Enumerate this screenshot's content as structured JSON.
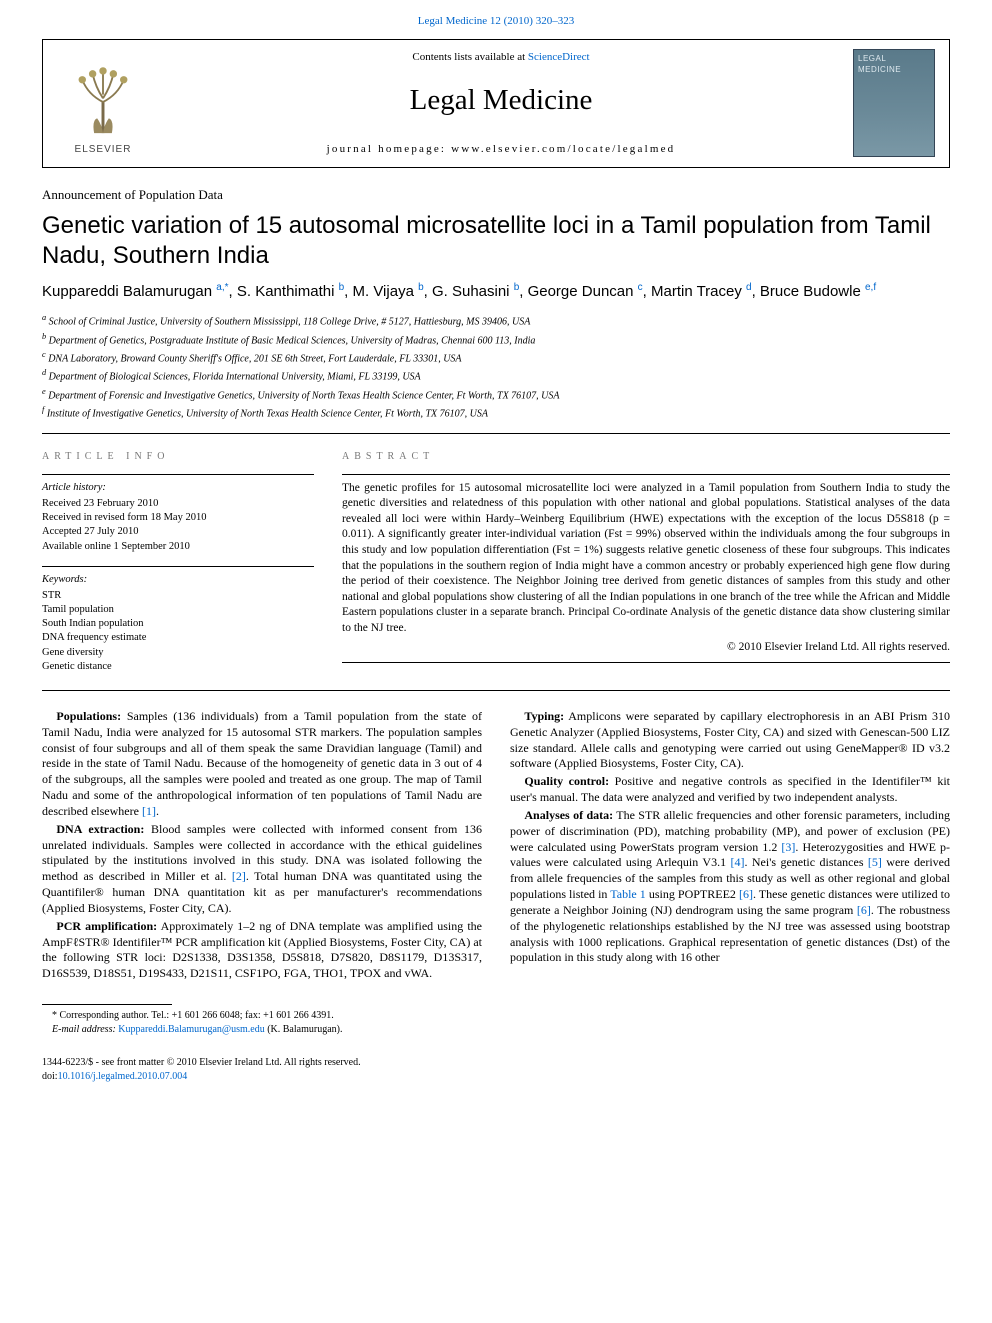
{
  "citation": "Legal Medicine 12 (2010) 320–323",
  "header": {
    "publisher_word": "ELSEVIER",
    "contents_prefix": "Contents lists available at ",
    "contents_link": "ScienceDirect",
    "journal": "Legal Medicine",
    "homepage_prefix": "journal homepage: ",
    "homepage": "www.elsevier.com/locate/legalmed",
    "cover_line1": "LEGAL",
    "cover_line2": "MEDICINE"
  },
  "article": {
    "type": "Announcement of Population Data",
    "title": "Genetic variation of 15 autosomal microsatellite loci in a Tamil population from Tamil Nadu, Southern India",
    "authors_html": "Kuppareddi Balamurugan <sup>a,*</sup>, S. Kanthimathi <sup>b</sup>, M. Vijaya <sup>b</sup>, G. Suhasini <sup>b</sup>, George Duncan <sup>c</sup>, Martin Tracey <sup>d</sup>, Bruce Budowle <sup>e,f</sup>",
    "affiliations": [
      "a School of Criminal Justice, University of Southern Mississippi, 118 College Drive, # 5127, Hattiesburg, MS 39406, USA",
      "b Department of Genetics, Postgraduate Institute of Basic Medical Sciences, University of Madras, Chennai 600 113, India",
      "c DNA Laboratory, Broward County Sheriff's Office, 201 SE 6th Street, Fort Lauderdale, FL 33301, USA",
      "d Department of Biological Sciences, Florida International University, Miami, FL 33199, USA",
      "e Department of Forensic and Investigative Genetics, University of North Texas Health Science Center, Ft Worth, TX 76107, USA",
      "f Institute of Investigative Genetics, University of North Texas Health Science Center, Ft Worth, TX 76107, USA"
    ]
  },
  "info": {
    "header": "ARTICLE INFO",
    "history_label": "Article history:",
    "history": [
      "Received 23 February 2010",
      "Received in revised form 18 May 2010",
      "Accepted 27 July 2010",
      "Available online 1 September 2010"
    ],
    "keywords_label": "Keywords:",
    "keywords": [
      "STR",
      "Tamil population",
      "South Indian population",
      "DNA frequency estimate",
      "Gene diversity",
      "Genetic distance"
    ]
  },
  "abstract": {
    "header": "ABSTRACT",
    "text": "The genetic profiles for 15 autosomal microsatellite loci were analyzed in a Tamil population from Southern India to study the genetic diversities and relatedness of this population with other national and global populations. Statistical analyses of the data revealed all loci were within Hardy–Weinberg Equilibrium (HWE) expectations with the exception of the locus D5S818 (p = 0.011). A significantly greater inter-individual variation (Fst = 99%) observed within the individuals among the four subgroups in this study and low population differentiation (Fst = 1%) suggests relative genetic closeness of these four subgroups. This indicates that the populations in the southern region of India might have a common ancestry or probably experienced high gene flow during the period of their coexistence. The Neighbor Joining tree derived from genetic distances of samples from this study and other national and global populations show clustering of all the Indian populations in one branch of the tree while the African and Middle Eastern populations cluster in a separate branch. Principal Co-ordinate Analysis of the genetic distance data show clustering similar to the NJ tree.",
    "copyright": "© 2010 Elsevier Ireland Ltd. All rights reserved."
  },
  "body": {
    "p1_lead": "Populations:",
    "p1": " Samples (136 individuals) from a Tamil population from the state of Tamil Nadu, India were analyzed for 15 autosomal STR markers. The population samples consist of four subgroups and all of them speak the same Dravidian language (Tamil) and reside in the state of Tamil Nadu. Because of the homogeneity of genetic data in 3 out of 4 of the subgroups, all the samples were pooled and treated as one group. The map of Tamil Nadu and some of the anthropological information of ten populations of Tamil Nadu are described elsewhere ",
    "p1_ref": "[1]",
    "p1_tail": ".",
    "p2_lead": "DNA extraction:",
    "p2": " Blood samples were collected with informed consent from 136 unrelated individuals. Samples were collected in accordance with the ethical guidelines stipulated by the institutions involved in this study. DNA was isolated following the method as described in Miller et al. ",
    "p2_ref": "[2]",
    "p2_tail": ". Total human DNA was quantitated using the Quantifiler® human DNA quantitation kit as per manufacturer's recommendations (Applied Biosystems, Foster City, CA).",
    "p3_lead": "PCR amplification:",
    "p3": " Approximately 1–2 ng of DNA template was amplified using the AmpFℓSTR® Identifiler™ PCR amplification kit (Applied Biosystems, Foster City, CA) at the following STR loci: D2S1338, D3S1358, D5S818, D7S820, D8S1179, D13S317, D16S539, D18S51, D19S433, D21S11, CSF1PO, FGA, THO1, TPOX and vWA.",
    "p4_lead": "Typing:",
    "p4": " Amplicons were separated by capillary electrophoresis in an ABI Prism 310 Genetic Analyzer (Applied Biosystems, Foster City, CA) and sized with Genescan-500 LIZ size standard. Allele calls and genotyping were carried out using GeneMapper® ID v3.2 software (Applied Biosystems, Foster City, CA).",
    "p5_lead": "Quality control:",
    "p5": " Positive and negative controls as specified in the Identifiler™ kit user's manual. The data were analyzed and verified by two independent analysts.",
    "p6_lead": "Analyses of data:",
    "p6a": " The STR allelic frequencies and other forensic parameters, including power of discrimination (PD), matching probability (MP), and power of exclusion (PE) were calculated using PowerStats program version 1.2 ",
    "p6_ref1": "[3]",
    "p6b": ". Heterozygosities and HWE p-values were calculated using Arlequin V3.1 ",
    "p6_ref2": "[4]",
    "p6c": ". Nei's genetic distances ",
    "p6_ref3": "[5]",
    "p6d": " were derived from allele frequencies of the samples from this study as well as other regional and global populations listed in ",
    "p6_tab": "Table 1",
    "p6e": " using POPTREE2 ",
    "p6_ref4": "[6]",
    "p6f": ". These genetic distances were utilized to generate a Neighbor Joining (NJ) dendrogram using the same program ",
    "p6_ref5": "[6]",
    "p6g": ". The robustness of the phylogenetic relationships established by the NJ tree was assessed using bootstrap analysis with 1000 replications. Graphical representation of genetic distances (Dst) of the population in this study along with 16 other"
  },
  "footnote": {
    "corr": "* Corresponding author. Tel.: +1 601 266 6048; fax: +1 601 266 4391.",
    "email_label": "E-mail address:",
    "email": "Kuppareddi.Balamurugan@usm.edu",
    "email_tail": " (K. Balamurugan)."
  },
  "bottom": {
    "front": "1344-6223/$ - see front matter © 2010 Elsevier Ireland Ltd. All rights reserved.",
    "doi_label": "doi:",
    "doi": "10.1016/j.legalmed.2010.07.004"
  },
  "colors": {
    "link": "#0066cc",
    "text": "#000000",
    "muted": "#777777",
    "cover_bg_top": "#5a7a8a",
    "cover_bg_bot": "#7a98a6"
  }
}
